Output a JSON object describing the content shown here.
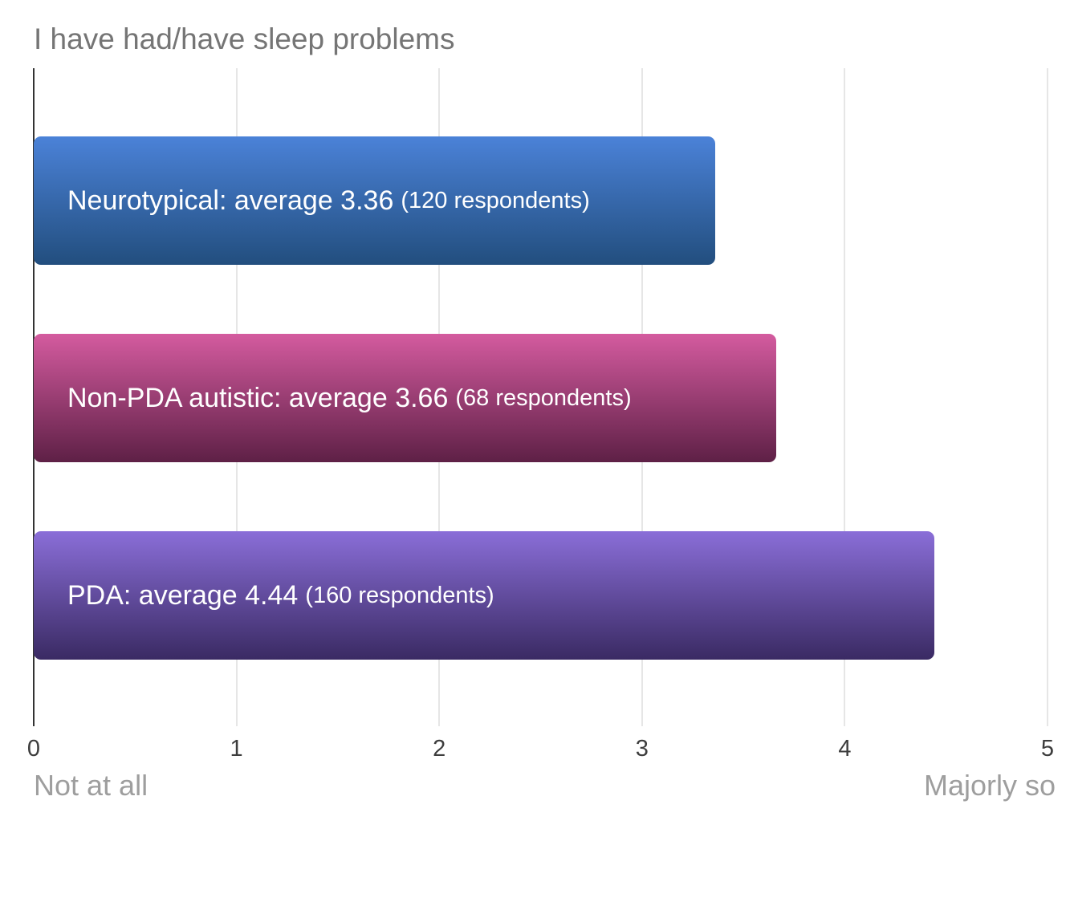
{
  "chart_data": {
    "type": "bar",
    "orientation": "horizontal",
    "title": "I have had/have sleep problems",
    "xlabel": "",
    "ylabel": "",
    "xlim": [
      0,
      5
    ],
    "x_ticks": [
      0,
      1,
      2,
      3,
      4,
      5
    ],
    "x_min_label": "Not at all",
    "x_max_label": "Majorly so",
    "grid": true,
    "legend": "none",
    "categories": [
      "Neurotypical",
      "Non-PDA autistic",
      "PDA"
    ],
    "values": [
      3.36,
      3.66,
      4.44
    ],
    "series": [
      {
        "name": "Neurotypical",
        "value": 3.36,
        "respondents": 120,
        "label_main": "Neurotypical: average 3.36",
        "label_sub": "(120 respondents)",
        "gradient_top": "#4b82d8",
        "gradient_bottom": "#224e7e"
      },
      {
        "name": "Non-PDA autistic",
        "value": 3.66,
        "respondents": 68,
        "label_main": "Non-PDA autistic: average 3.66",
        "label_sub": "(68 respondents)",
        "gradient_top": "#d45b9f",
        "gradient_bottom": "#5e2046"
      },
      {
        "name": "PDA",
        "value": 4.44,
        "respondents": 160,
        "label_main": "PDA: average 4.44",
        "label_sub": "(160 respondents)",
        "gradient_top": "#8a6ed8",
        "gradient_bottom": "#3a2a63"
      }
    ]
  }
}
